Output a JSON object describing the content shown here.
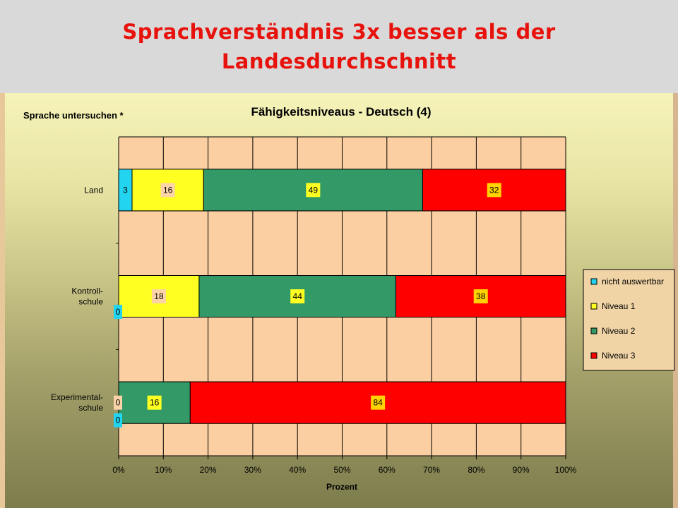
{
  "slide": {
    "title_line1": "Sprachverständnis 3x besser als der",
    "title_line2": "Landesdurchschnitt"
  },
  "colors": {
    "plot_background": "#fccfa2",
    "nicht_auswertbar": "#22d4f0",
    "niveau_1": "#ffff22",
    "niveau_2": "#339966",
    "niveau_3": "#ff0000",
    "title": "#e8120c"
  },
  "chart_data": {
    "type": "bar",
    "orientation": "horizontal",
    "stacked": true,
    "title": "Fähigkeitsniveaus - Deutsch (4)",
    "corner_label": "Sprache untersuchen *",
    "xlabel": "Prozent",
    "ylabel": "",
    "xlim": [
      0,
      100
    ],
    "x_ticks": [
      "0%",
      "10%",
      "20%",
      "30%",
      "40%",
      "50%",
      "60%",
      "70%",
      "80%",
      "90%",
      "100%"
    ],
    "grid": true,
    "legend_position": "right",
    "categories": [
      [
        "Land"
      ],
      [
        "Kontroll-",
        "schule"
      ],
      [
        "Experimental-",
        "schule"
      ]
    ],
    "series": [
      {
        "name": "nicht auswertbar",
        "values": [
          3,
          0,
          0
        ]
      },
      {
        "name": "Niveau 1",
        "values": [
          16,
          18,
          0
        ]
      },
      {
        "name": "Niveau 2",
        "values": [
          49,
          44,
          16
        ]
      },
      {
        "name": "Niveau 3",
        "values": [
          32,
          38,
          84
        ]
      }
    ]
  }
}
